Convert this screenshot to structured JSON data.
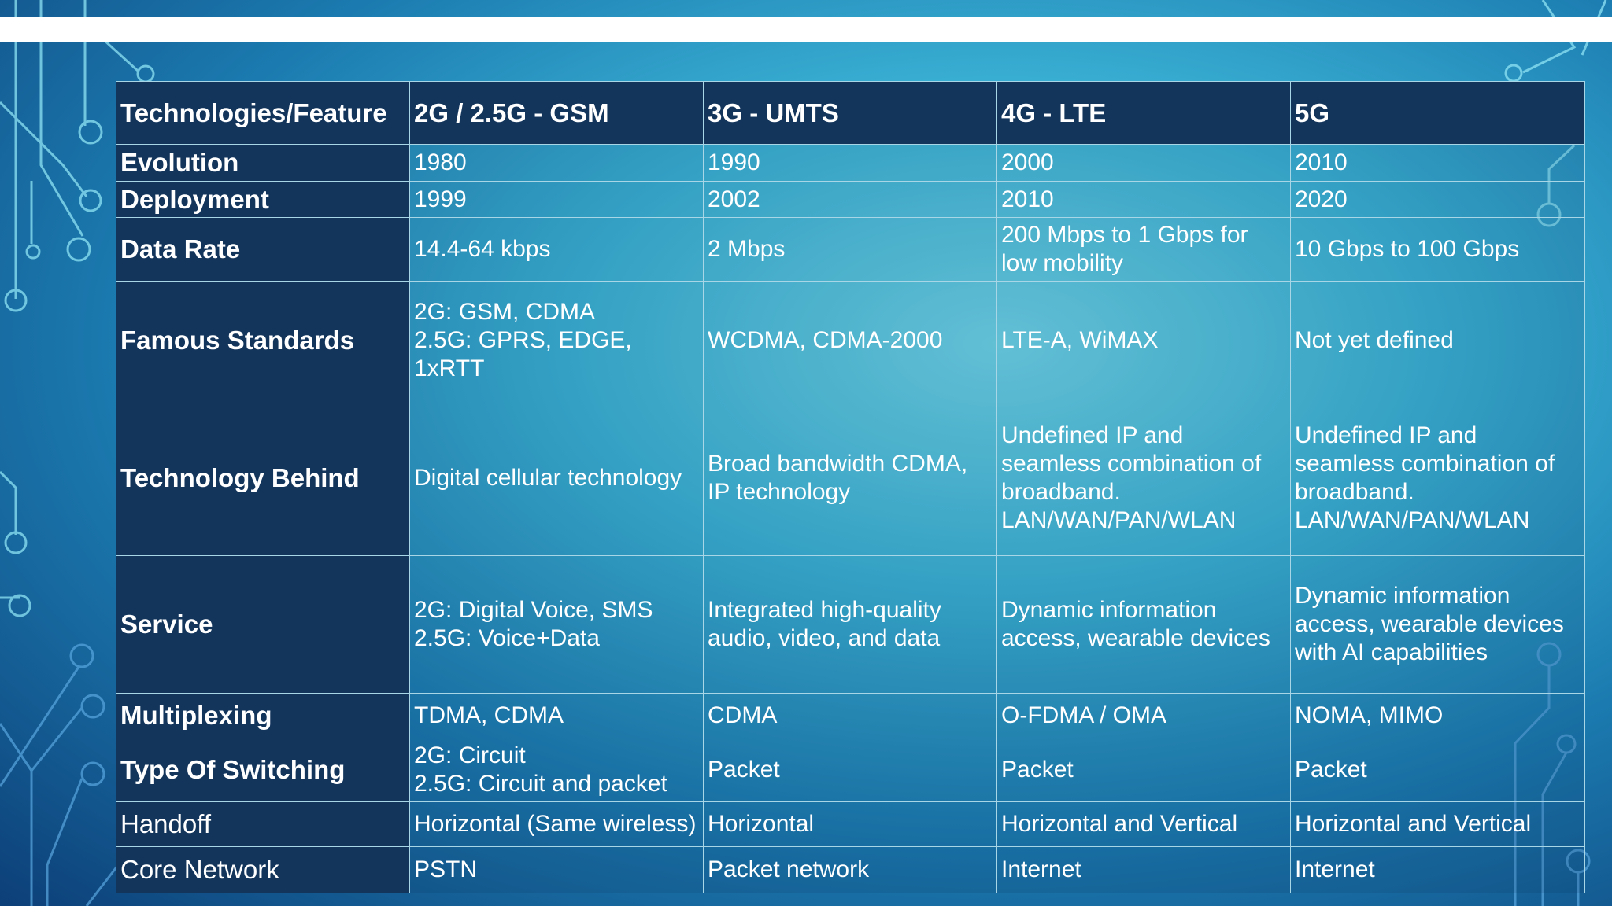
{
  "table": {
    "header": [
      "Technologies/Feature",
      "2G / 2.5G - GSM",
      "3G - UMTS",
      "4G - LTE",
      "5G"
    ],
    "rows": [
      {
        "label": "Evolution",
        "cells": [
          "1980",
          "1990",
          "2000",
          "2010"
        ]
      },
      {
        "label": "Deployment",
        "cells": [
          "1999",
          "2002",
          "2010",
          "2020"
        ]
      },
      {
        "label": "Data Rate",
        "cells": [
          "14.4-64 kbps",
          "2 Mbps",
          "200 Mbps to 1 Gbps for low mobility",
          "10 Gbps to 100 Gbps"
        ]
      },
      {
        "label": "Famous Standards",
        "cells": [
          "2G: GSM, CDMA\n2.5G: GPRS, EDGE, 1xRTT",
          "WCDMA, CDMA-2000",
          "LTE-A, WiMAX",
          "Not yet defined"
        ]
      },
      {
        "label": "Technology Behind",
        "cells": [
          "Digital cellular technology",
          "Broad bandwidth CDMA, IP technology",
          "Undefined IP and seamless combination of broadband. LAN/WAN/PAN/WLAN",
          "Undefined IP and seamless combination of broadband. LAN/WAN/PAN/WLAN"
        ]
      },
      {
        "label": "Service",
        "cells": [
          "2G: Digital Voice, SMS\n2.5G: Voice+Data",
          "Integrated high-quality audio, video, and data",
          "Dynamic information access, wearable devices",
          "Dynamic information access, wearable devices with AI capabilities"
        ]
      },
      {
        "label": "Multiplexing",
        "cells": [
          "TDMA, CDMA",
          "CDMA",
          "O-FDMA / OMA",
          "NOMA, MIMO"
        ]
      },
      {
        "label": "Type Of Switching",
        "cells": [
          "2G: Circuit\n2.5G: Circuit and packet",
          "Packet",
          "Packet",
          "Packet"
        ]
      },
      {
        "label": "Handoff",
        "cells": [
          "Horizontal (Same wireless)",
          "Horizontal",
          "Horizontal and Vertical",
          "Horizontal and Vertical"
        ]
      },
      {
        "label": "Core Network",
        "cells": [
          "PSTN",
          "Packet network",
          "Internet",
          "Internet"
        ]
      }
    ]
  }
}
